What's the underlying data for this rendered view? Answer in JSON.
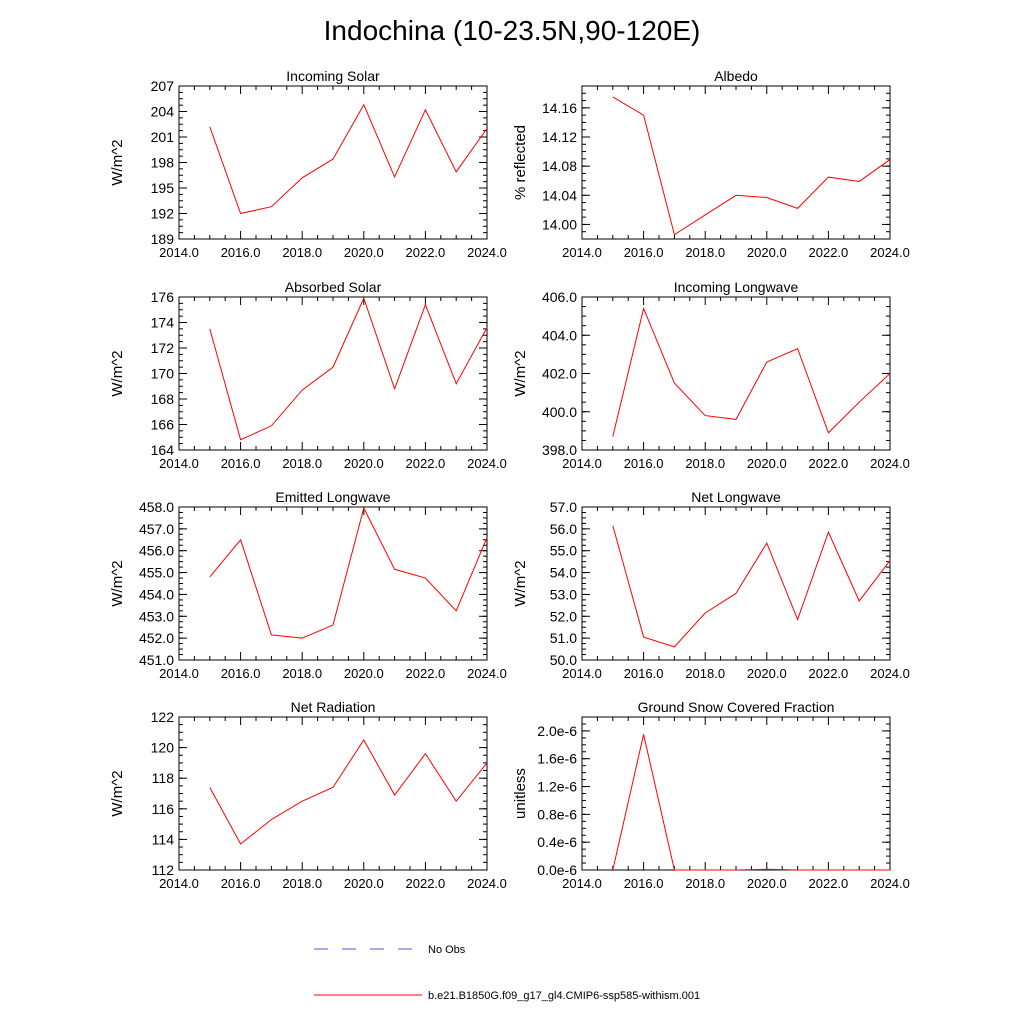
{
  "title": "Indochina (10-23.5N,90-120E)",
  "x_ticks": [
    "2014.0",
    "2016.0",
    "2018.0",
    "2020.0",
    "2022.0",
    "2024.0"
  ],
  "colors": {
    "model_line": "#ff0000",
    "obs_line": "#5555cc",
    "axis": "#000000"
  },
  "legend": {
    "obs_label": "No Obs",
    "model_label": "b.e21.B1850G.f09_g17_gl4.CMIP6-ssp585-withism.001"
  },
  "chart_data": [
    {
      "type": "line",
      "title": "Incoming Solar",
      "ylabel": "W/m^2",
      "xlim": [
        2014,
        2024
      ],
      "ylim": [
        189,
        207
      ],
      "y_ticks": [
        189,
        192,
        195,
        198,
        201,
        204,
        207
      ],
      "y_tick_labels": [
        "189",
        "192",
        "195",
        "198",
        "201",
        "204",
        "207"
      ],
      "x": [
        2015,
        2016,
        2017,
        2018,
        2019,
        2020,
        2021,
        2022,
        2023,
        2024
      ],
      "series": [
        {
          "values": [
            202.2,
            192.0,
            192.8,
            196.2,
            198.4,
            204.8,
            196.3,
            204.2,
            196.9,
            202.0
          ]
        }
      ]
    },
    {
      "type": "line",
      "title": "Albedo",
      "ylabel": "% reflected",
      "xlim": [
        2014,
        2024
      ],
      "ylim": [
        13.98,
        14.19
      ],
      "y_ticks": [
        14.0,
        14.04,
        14.08,
        14.12,
        14.16
      ],
      "y_tick_labels": [
        "14.00",
        "14.04",
        "14.08",
        "14.12",
        "14.16"
      ],
      "x": [
        2015,
        2016,
        2017,
        2018,
        2019,
        2020,
        2021,
        2022,
        2023,
        2024
      ],
      "series": [
        {
          "values": [
            14.175,
            14.15,
            13.986,
            14.013,
            14.04,
            14.037,
            14.022,
            14.065,
            14.059,
            14.089
          ]
        }
      ]
    },
    {
      "type": "line",
      "title": "Absorbed Solar",
      "ylabel": "W/m^2",
      "xlim": [
        2014,
        2024
      ],
      "ylim": [
        164,
        176
      ],
      "y_ticks": [
        164,
        166,
        168,
        170,
        172,
        174,
        176
      ],
      "y_tick_labels": [
        "164",
        "166",
        "168",
        "170",
        "172",
        "174",
        "176"
      ],
      "x": [
        2015,
        2016,
        2017,
        2018,
        2019,
        2020,
        2021,
        2022,
        2023,
        2024
      ],
      "series": [
        {
          "values": [
            173.5,
            164.8,
            165.9,
            168.7,
            170.5,
            175.9,
            168.8,
            175.4,
            169.2,
            173.6
          ]
        }
      ]
    },
    {
      "type": "line",
      "title": "Incoming Longwave",
      "ylabel": "W/m^2",
      "xlim": [
        2014,
        2024
      ],
      "ylim": [
        398,
        406
      ],
      "y_ticks": [
        398,
        400,
        402,
        404,
        406
      ],
      "y_tick_labels": [
        "398.0",
        "400.0",
        "402.0",
        "404.0",
        "406.0"
      ],
      "x": [
        2015,
        2016,
        2017,
        2018,
        2019,
        2020,
        2021,
        2022,
        2023,
        2024
      ],
      "series": [
        {
          "values": [
            398.7,
            405.4,
            401.5,
            399.8,
            399.6,
            402.6,
            403.3,
            398.9,
            400.5,
            402.0
          ]
        }
      ]
    },
    {
      "type": "line",
      "title": "Emitted Longwave",
      "ylabel": "W/m^2",
      "xlim": [
        2014,
        2024
      ],
      "ylim": [
        451,
        458
      ],
      "y_ticks": [
        451,
        452,
        453,
        454,
        455,
        456,
        457,
        458
      ],
      "y_tick_labels": [
        "451.0",
        "452.0",
        "453.0",
        "454.0",
        "455.0",
        "456.0",
        "457.0",
        "458.0"
      ],
      "x": [
        2015,
        2016,
        2017,
        2018,
        2019,
        2020,
        2021,
        2022,
        2023,
        2024
      ],
      "series": [
        {
          "values": [
            454.8,
            456.5,
            452.15,
            452.0,
            452.6,
            457.95,
            455.15,
            454.75,
            453.25,
            456.6
          ]
        }
      ]
    },
    {
      "type": "line",
      "title": "Net Longwave",
      "ylabel": "W/m^2",
      "xlim": [
        2014,
        2024
      ],
      "ylim": [
        50,
        57
      ],
      "y_ticks": [
        50,
        51,
        52,
        53,
        54,
        55,
        56,
        57
      ],
      "y_tick_labels": [
        "50.0",
        "51.0",
        "52.0",
        "53.0",
        "54.0",
        "55.0",
        "56.0",
        "57.0"
      ],
      "x": [
        2015,
        2016,
        2017,
        2018,
        2019,
        2020,
        2021,
        2022,
        2023,
        2024
      ],
      "series": [
        {
          "values": [
            56.15,
            51.05,
            50.6,
            52.15,
            53.05,
            55.35,
            51.85,
            55.85,
            52.7,
            54.55
          ]
        }
      ]
    },
    {
      "type": "line",
      "title": "Net Radiation",
      "ylabel": "W/m^2",
      "xlim": [
        2014,
        2024
      ],
      "ylim": [
        112,
        122
      ],
      "y_ticks": [
        112,
        114,
        116,
        118,
        120,
        122
      ],
      "y_tick_labels": [
        "112",
        "114",
        "116",
        "118",
        "120",
        "122"
      ],
      "x": [
        2015,
        2016,
        2017,
        2018,
        2019,
        2020,
        2021,
        2022,
        2023,
        2024
      ],
      "series": [
        {
          "values": [
            117.4,
            113.7,
            115.3,
            116.5,
            117.4,
            120.5,
            116.9,
            119.6,
            116.5,
            119.0
          ]
        }
      ]
    },
    {
      "type": "line",
      "title": "Ground Snow Covered Fraction",
      "ylabel": "unitless",
      "xlim": [
        2014,
        2024
      ],
      "ylim": [
        0,
        2.2e-06
      ],
      "y_ticks": [
        0,
        4e-07,
        8e-07,
        1.2e-06,
        1.6e-06,
        2e-06
      ],
      "y_tick_labels": [
        "0.0e-6",
        "0.4e-6",
        "0.8e-6",
        "1.2e-6",
        "1.6e-6",
        "2.0e-6"
      ],
      "x": [
        2015,
        2016,
        2017,
        2018,
        2019,
        2020,
        2021,
        2022,
        2023,
        2024
      ],
      "series": [
        {
          "values": [
            0,
            1.95e-06,
            0,
            0,
            0,
            1e-08,
            0,
            0,
            0,
            0
          ]
        }
      ]
    }
  ]
}
